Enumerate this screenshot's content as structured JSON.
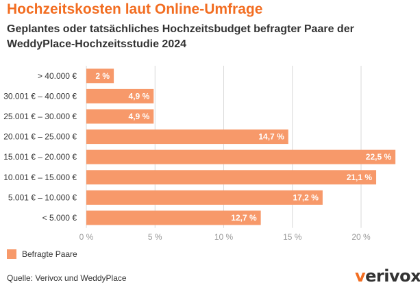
{
  "header": {
    "title": "Hochzeitskosten laut Online-Umfrage",
    "subtitle": "Geplantes oder tatsächliches Hochzeitsbudget befragter Paare der WeddyPlace-Hochzeitsstudie 2024"
  },
  "legend": {
    "label": "Befragte Paare"
  },
  "footer": {
    "source": "Quelle: Verivox und WeddyPlace",
    "logo_text": "verivox"
  },
  "colors": {
    "title": "#f26d21",
    "bar": "#f7996a",
    "grid": "#d9d9d9",
    "axis_text": "#999999",
    "label_text": "#333333"
  },
  "chart_data": {
    "type": "bar",
    "orientation": "horizontal",
    "categories": [
      "> 40.000 €",
      "30.001 € – 40.000 €",
      "25.001 € – 30.000 €",
      "20.001 € – 25.000 €",
      "15.001 € – 20.000 €",
      "10.001 € – 15.000 €",
      "5.001 € – 10.000 €",
      "< 5.000 €"
    ],
    "series": [
      {
        "name": "Befragte Paare",
        "values": [
          2,
          4.9,
          4.9,
          14.7,
          22.5,
          21.1,
          17.2,
          12.7
        ],
        "labels": [
          "2 %",
          "4,9 %",
          "4,9 %",
          "14,7 %",
          "22,5 %",
          "21,1 %",
          "17,2 %",
          "12,7 %"
        ]
      }
    ],
    "xlim": [
      0,
      20
    ],
    "xticks": [
      0,
      5,
      10,
      15,
      20
    ],
    "xtick_labels": [
      "0 %",
      "5 %",
      "10 %",
      "15 %",
      "20 %"
    ],
    "grid": true,
    "legend_position": "bottom-left"
  }
}
